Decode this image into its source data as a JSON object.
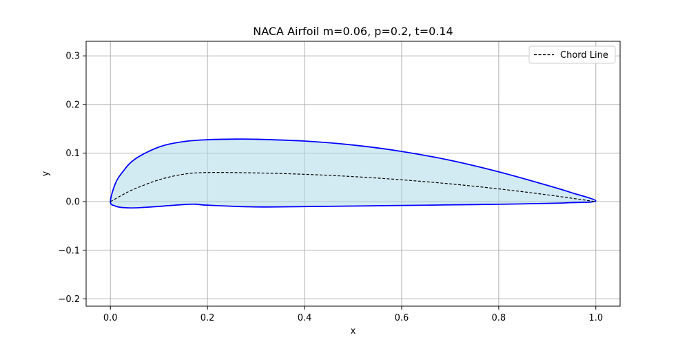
{
  "chart_data": {
    "type": "line",
    "title": "NACA Airfoil m=0.06, p=0.2, t=0.14",
    "xlabel": "x",
    "ylabel": "y",
    "xlim": [
      -0.05,
      1.05
    ],
    "ylim": [
      -0.215,
      0.33
    ],
    "xticks": [
      0.0,
      0.2,
      0.4,
      0.6,
      0.8,
      1.0
    ],
    "xtick_labels": [
      "0.0",
      "0.2",
      "0.4",
      "0.6",
      "0.8",
      "1.0"
    ],
    "yticks": [
      -0.2,
      -0.1,
      0.0,
      0.1,
      0.2,
      0.3
    ],
    "ytick_labels": [
      "−0.2",
      "−0.1",
      "0.0",
      "0.1",
      "0.2",
      "0.3"
    ],
    "grid": true,
    "legend_position": "top-right",
    "fill_color": "#add8e6",
    "fill_opacity": 0.55,
    "series": [
      {
        "kind": "surface",
        "color": "#0000ff",
        "style": "solid",
        "x": [
          0.0,
          0.01,
          0.025,
          0.05,
          0.1,
          0.15,
          0.2,
          0.25,
          0.3,
          0.4,
          0.5,
          0.6,
          0.7,
          0.8,
          0.9,
          0.95,
          1.0,
          0.95,
          0.9,
          0.8,
          0.7,
          0.6,
          0.5,
          0.4,
          0.3,
          0.2,
          0.175,
          0.15,
          0.1,
          0.05,
          0.025,
          0.01,
          0.0
        ],
        "y": [
          0.0,
          0.0368,
          0.0608,
          0.0871,
          0.1124,
          0.1235,
          0.1275,
          0.1286,
          0.1284,
          0.1247,
          0.1165,
          0.1034,
          0.0851,
          0.0614,
          0.0336,
          0.0185,
          0.0015,
          -0.002,
          -0.0036,
          -0.0053,
          -0.0066,
          -0.0078,
          -0.009,
          -0.0101,
          -0.0108,
          -0.0072,
          -0.0052,
          -0.006,
          -0.0097,
          -0.0128,
          -0.0121,
          -0.009,
          0.0
        ]
      },
      {
        "name": "Chord Line",
        "kind": "camber",
        "color": "#000000",
        "style": "dashed",
        "x": [
          0.0,
          0.025,
          0.05,
          0.1,
          0.15,
          0.2,
          0.3,
          0.4,
          0.5,
          0.6,
          0.7,
          0.8,
          0.9,
          1.0
        ],
        "y": [
          0.0,
          0.0141,
          0.0263,
          0.045,
          0.0563,
          0.06,
          0.0591,
          0.0563,
          0.0516,
          0.045,
          0.0366,
          0.0263,
          0.0141,
          0.0
        ]
      }
    ]
  }
}
